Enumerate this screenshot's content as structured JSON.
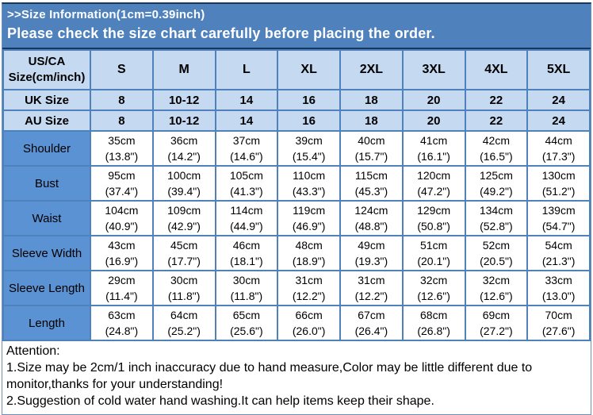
{
  "banner": {
    "line1": ">>Size Information(1cm=0.39inch)",
    "line2": "Please check the size chart carefully before placing the order."
  },
  "table": {
    "corner_line1": "US/CA",
    "corner_line2": "Size(cm/inch)",
    "sizes": [
      "S",
      "M",
      "L",
      "XL",
      "2XL",
      "3XL",
      "4XL",
      "5XL"
    ],
    "uk_row": {
      "label": "UK Size",
      "values": [
        "8",
        "10-12",
        "14",
        "16",
        "18",
        "20",
        "22",
        "24"
      ]
    },
    "au_row": {
      "label": "AU Size",
      "values": [
        "8",
        "10-12",
        "14",
        "16",
        "18",
        "20",
        "22",
        "24"
      ]
    },
    "measurements": [
      {
        "label": "Shoulder",
        "cm": [
          "35cm",
          "36cm",
          "37cm",
          "39cm",
          "40cm",
          "41cm",
          "42cm",
          "44cm"
        ],
        "inch": [
          "(13.8\")",
          "(14.2\")",
          "(14.6\")",
          "(15.4\")",
          "(15.7\")",
          "(16.1\")",
          "(16.5\")",
          "(17.3\")"
        ]
      },
      {
        "label": "Bust",
        "cm": [
          "95cm",
          "100cm",
          "105cm",
          "110cm",
          "115cm",
          "120cm",
          "125cm",
          "130cm"
        ],
        "inch": [
          "(37.4\")",
          "(39.4\")",
          "(41.3\")",
          "(43.3\")",
          "(45.3\")",
          "(47.2\")",
          "(49.2\")",
          "(51.2\")"
        ]
      },
      {
        "label": "Waist",
        "cm": [
          "104cm",
          "109cm",
          "114cm",
          "119cm",
          "124cm",
          "129cm",
          "134cm",
          "139cm"
        ],
        "inch": [
          "(40.9\")",
          "(42.9\")",
          "(44.9\")",
          "(46.9\")",
          "(48.8\")",
          "(50.8\")",
          "(52.8\")",
          "(54.7\")"
        ]
      },
      {
        "label": "Sleeve Width",
        "cm": [
          "43cm",
          "45cm",
          "46cm",
          "48cm",
          "49cm",
          "51cm",
          "52cm",
          "54cm"
        ],
        "inch": [
          "(16.9\")",
          "(17.7\")",
          "(18.1\")",
          "(18.9\")",
          "(19.3\")",
          "(20.1\")",
          "(20.5\")",
          "(21.3\")"
        ]
      },
      {
        "label": "Sleeve Length",
        "cm": [
          "29cm",
          "30cm",
          "30cm",
          "31cm",
          "31cm",
          "32cm",
          "32cm",
          "33cm"
        ],
        "inch": [
          "(11.4\")",
          "(11.8\")",
          "(11.8\")",
          "(12.2\")",
          "(12.2\")",
          "(12.6\")",
          "(12.6\")",
          "(13.0\")"
        ]
      },
      {
        "label": "Length",
        "cm": [
          "63cm",
          "64cm",
          "65cm",
          "66cm",
          "67cm",
          "68cm",
          "69cm",
          "70cm"
        ],
        "inch": [
          "(24.8\")",
          "(25.2\")",
          "(25.6\")",
          "(26.0\")",
          "(26.4\")",
          "(26.8\")",
          "(27.2\")",
          "(27.6\")"
        ]
      }
    ]
  },
  "attention": {
    "title": "Attention:",
    "notes": [
      "1.Size may be 2cm/1 inch inaccuracy due to hand measure,Color may be little different due to monitor,thanks for your understanding!",
      "2.Suggestion of cold water hand washing.It can help items keep their shape."
    ]
  },
  "colors": {
    "banner_blue": "#4F81BD",
    "dark_border": "#17375E",
    "light_cell_blue": "#C5D9F1",
    "label_cell_blue": "#5B92D3"
  }
}
